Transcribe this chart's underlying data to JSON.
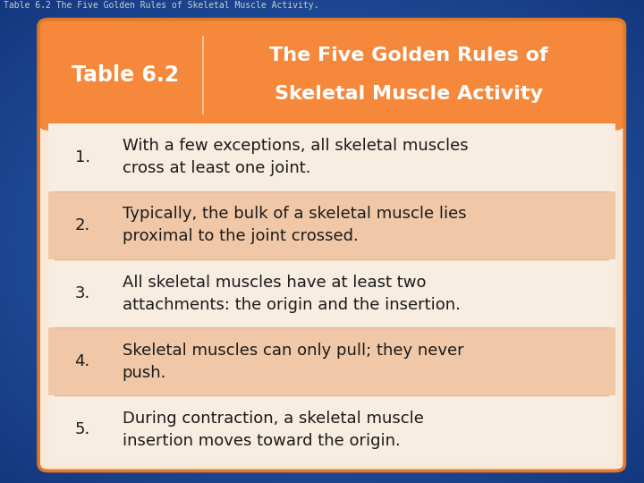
{
  "caption": "Table 6.2 The Five Golden Rules of Skeletal Muscle Activity.",
  "caption_color": "#cccccc",
  "caption_fontsize": 7,
  "header_label": "Table 6.2",
  "header_title_line1": "The Five Golden Rules of",
  "header_title_line2": "Skeletal Muscle Activity",
  "header_bg": "#f5883a",
  "header_label_color": "#ffffff",
  "header_title_color": "#ffffff",
  "table_outer_bg": "#f7e8d8",
  "rows": [
    {
      "num": "1.",
      "text": "With a few exceptions, all skeletal muscles\ncross at least one joint.",
      "shaded": false
    },
    {
      "num": "2.",
      "text": "Typically, the bulk of a skeletal muscle lies\nproximal to the joint crossed.",
      "shaded": true
    },
    {
      "num": "3.",
      "text": "All skeletal muscles have at least two\nattachments: the origin and the insertion.",
      "shaded": false
    },
    {
      "num": "4.",
      "text": "Skeletal muscles can only pull; they never\npush.",
      "shaded": true
    },
    {
      "num": "5.",
      "text": "During contraction, a skeletal muscle\ninsertion moves toward the origin.",
      "shaded": false
    }
  ],
  "row_shaded_color": "#f0c8a8",
  "row_unshaded_color": "#f7ede0",
  "row_text_color": "#1a1a1a",
  "row_num_color": "#1a1a1a",
  "divider_color": "#e8b898",
  "border_color": "#e07828",
  "figsize": [
    7.2,
    5.4
  ],
  "dpi": 100
}
